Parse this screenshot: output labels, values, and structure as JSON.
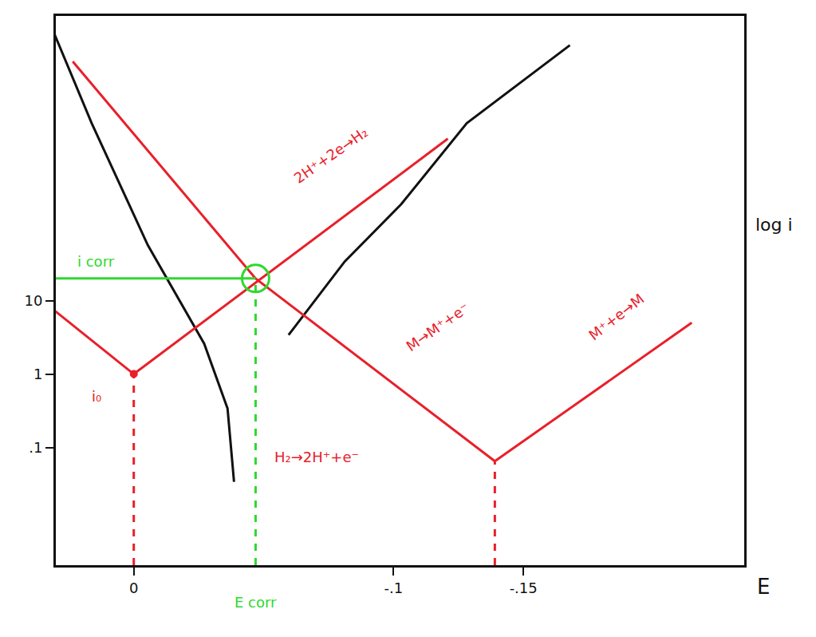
{
  "chart_data": {
    "type": "line",
    "x_label": "E",
    "y_label": "log i",
    "log": "y",
    "grid": false,
    "xlim": [
      0.03,
      -0.235
    ],
    "ylim": [
      0.0025,
      75000
    ],
    "xticks": [
      0,
      {
        "value": -0.1,
        "label": "-.1"
      },
      {
        "value": -0.15,
        "label": "-.15"
      }
    ],
    "yticks": [
      {
        "value": 0.1,
        "label": ".1"
      },
      1,
      10
    ],
    "series": [
      {
        "color": "#111111",
        "line_style": "solid",
        "x": [
          0.0307,
          0.0162,
          -0.0054,
          -0.0271,
          -0.0361,
          -0.0386
        ],
        "values": [
          44000,
          2600,
          57,
          2.6,
          0.34,
          0.034
        ]
      },
      {
        "color": "#111111",
        "line_style": "solid",
        "x": [
          -0.0596,
          -0.0812,
          -0.1029,
          -0.1282,
          -0.1679
        ],
        "values": [
          3.4,
          34,
          204,
          2600,
          30000
        ]
      },
      {
        "color": "#e8202a",
        "line_style": "solid",
        "x": [
          0.0235,
          -0.0469,
          -0.139
        ],
        "values": [
          18000,
          20,
          0.065
        ]
      },
      {
        "color": "#e8202a",
        "line_style": "solid",
        "x": [
          -0.139,
          -0.2148
        ],
        "values": [
          0.065,
          5.0
        ]
      },
      {
        "color": "#e8202a",
        "line_style": "solid",
        "x": [
          0,
          -0.1209
        ],
        "values": [
          1,
          1600
        ]
      },
      {
        "color": "#e8202a",
        "line_style": "solid",
        "x": [
          0.0307,
          0
        ],
        "values": [
          7.4,
          1
        ]
      },
      {
        "color": "#e8202a",
        "line_style": "dashed",
        "x": [
          0,
          0
        ],
        "values": [
          0.0025,
          1
        ]
      },
      {
        "color": "#e8202a",
        "line_style": "dashed",
        "x": [
          -0.139,
          -0.139
        ],
        "values": [
          0.0025,
          0.065
        ]
      },
      {
        "color": "#2fd82f",
        "line_style": "dashed",
        "x": [
          -0.0469,
          -0.0469
        ],
        "values": [
          0.0025,
          20
        ]
      },
      {
        "color": "#2fd82f",
        "line_style": "solid",
        "x": [
          0.03,
          -0.0469
        ],
        "values": [
          20,
          20
        ]
      },
      {
        "color": "#e8202a",
        "marker": "circle",
        "x": [
          0
        ],
        "values": [
          1
        ]
      },
      {
        "color": "#2fd82f",
        "marker": "circle-open",
        "x": [
          -0.0469
        ],
        "values": [
          20
        ]
      }
    ],
    "annotations": [
      {
        "text": "2H⁺+2e→H₂",
        "x": -0.0758,
        "y": 950,
        "color": "#e8202a"
      },
      {
        "text": "M→M⁺+e⁻",
        "x": -0.117,
        "y": 4.4,
        "color": "#e8202a"
      },
      {
        "text": "M⁺+e→M",
        "x": -0.186,
        "y": 6,
        "color": "#e8202a"
      },
      {
        "text": "H₂→2H⁺+e⁻",
        "x": -0.0704,
        "y": 0.074,
        "color": "#e8202a"
      },
      {
        "text": "i₀",
        "x": 0.0144,
        "y": 0.5,
        "color": "#e8202a"
      },
      {
        "text": "i corr",
        "x": 0.0144,
        "y": 34,
        "color": "#2fd82f"
      },
      {
        "text": "E corr",
        "x": -0.0469,
        "color": "#2fd82f"
      }
    ]
  }
}
